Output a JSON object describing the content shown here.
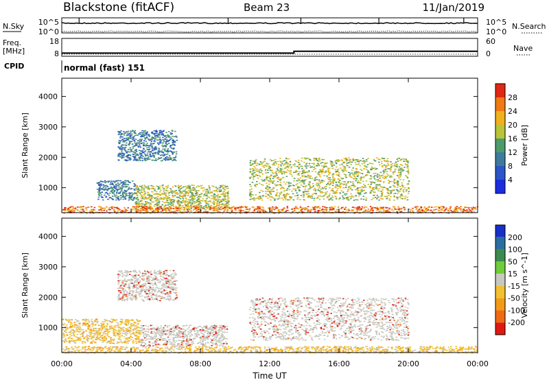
{
  "header": {
    "station": "Blackstone (fitACF)",
    "beam": "Beam 23",
    "date": "11/Jan/2019"
  },
  "top_panels": {
    "nsky_label": "N.Sky",
    "nsearch_label": "N.Search",
    "count_ticks": [
      "10^5",
      "10^0"
    ],
    "freq_label": "Freq.",
    "freq_unit": "[MHz]",
    "freq_ticks": [
      "18",
      "8"
    ],
    "nave_label": "Nave",
    "nave_ticks": [
      "60",
      "0"
    ],
    "cpid_label": "CPID",
    "cpid_value": "normal (fast) 151",
    "freq_series": {
      "x": [
        0,
        13.4,
        13.4,
        24
      ],
      "y": [
        9.8,
        9.8,
        10.8,
        10.8
      ]
    }
  },
  "x_axis": {
    "label": "Time UT",
    "range_hours": [
      0,
      24
    ],
    "ticks": [
      0,
      4,
      8,
      12,
      16,
      20,
      24
    ],
    "tick_labels": [
      "00:00",
      "04:00",
      "08:00",
      "12:00",
      "16:00",
      "20:00",
      "00:00"
    ]
  },
  "y_axis": {
    "label": "Slant Range [km]",
    "range_km": [
      180,
      4600
    ],
    "ticks": [
      1000,
      2000,
      3000,
      4000
    ],
    "tick_labels": [
      "1000",
      "2000",
      "3000",
      "4000"
    ]
  },
  "power_colorbar": {
    "label": "Power [dB]",
    "tick_labels": [
      "4",
      "8",
      "12",
      "16",
      "20",
      "24",
      "28"
    ],
    "colors": [
      "#1a2ee0",
      "#2b55c8",
      "#3f7a9e",
      "#4f9a6a",
      "#b8c43a",
      "#f0b11e",
      "#f07a14",
      "#e02814"
    ]
  },
  "velocity_colorbar": {
    "label": "Velocity [m s^-1]",
    "tick_labels": [
      "200",
      "100",
      "50",
      "15",
      "-15",
      "-50",
      "-100",
      "-200"
    ],
    "colors": [
      "#1630c8",
      "#2a6ea0",
      "#3c8a50",
      "#6fcc3a",
      "#c8c8c0",
      "#f2c030",
      "#f29a18",
      "#f06a14",
      "#e01a10"
    ]
  },
  "chart_data": [
    {
      "type": "heatmap",
      "title": "Power",
      "xlabel": "Time UT",
      "ylabel": "Slant Range [km]",
      "x_range_hours": [
        0,
        24
      ],
      "y_range_km": [
        180,
        4600
      ],
      "value_label": "Power [dB]",
      "scatter_regions": [
        {
          "t": [
            2.0,
            4.2
          ],
          "r": [
            600,
            1250
          ],
          "dominant_power_db": 8
        },
        {
          "t": [
            3.2,
            6.6
          ],
          "r": [
            1900,
            2900
          ],
          "dominant_power_db": 6
        },
        {
          "t": [
            4.2,
            9.6
          ],
          "r": [
            300,
            1100
          ],
          "dominant_power_db": 16
        },
        {
          "t": [
            10.8,
            20.0
          ],
          "r": [
            600,
            2000
          ],
          "dominant_power_db": 14
        },
        {
          "t": [
            0.0,
            24.0
          ],
          "r": [
            180,
            400
          ],
          "dominant_power_db": 24
        }
      ]
    },
    {
      "type": "heatmap",
      "title": "Velocity",
      "xlabel": "Time UT",
      "ylabel": "Slant Range [km]",
      "x_range_hours": [
        0,
        24
      ],
      "y_range_km": [
        180,
        4600
      ],
      "value_label": "Velocity [m s^-1]",
      "scatter_regions": [
        {
          "t": [
            0.0,
            4.5
          ],
          "r": [
            500,
            1300
          ],
          "dominant_velocity": -30
        },
        {
          "t": [
            3.2,
            6.6
          ],
          "r": [
            1900,
            2900
          ],
          "dominant_velocity": 0
        },
        {
          "t": [
            4.5,
            9.5
          ],
          "r": [
            400,
            1100
          ],
          "dominant_velocity": 0
        },
        {
          "t": [
            10.8,
            20.0
          ],
          "r": [
            600,
            2000
          ],
          "dominant_velocity": 0
        },
        {
          "t": [
            0.0,
            24.0
          ],
          "r": [
            180,
            400
          ],
          "dominant_velocity": -30
        }
      ]
    }
  ]
}
